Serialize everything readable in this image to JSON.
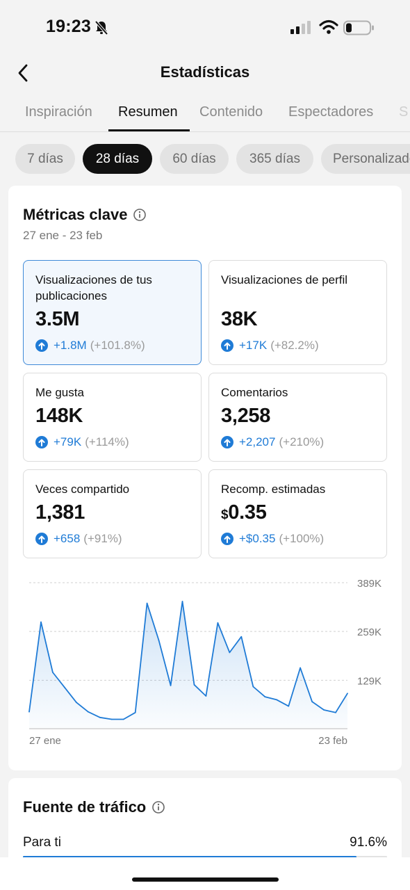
{
  "status_bar": {
    "time": "19:23"
  },
  "header": {
    "title": "Estadísticas"
  },
  "tabs": [
    {
      "label": "Inspiración"
    },
    {
      "label": "Resumen"
    },
    {
      "label": "Contenido"
    },
    {
      "label": "Espectadores"
    },
    {
      "label": "S"
    }
  ],
  "active_tab": "Resumen",
  "periods": [
    {
      "label": "7 días"
    },
    {
      "label": "28 días"
    },
    {
      "label": "60 días"
    },
    {
      "label": "365 días"
    },
    {
      "label": "Personalizado"
    }
  ],
  "active_period": "28 días",
  "metrics": {
    "title": "Métricas clave",
    "range": "27 ene - 23 feb",
    "tiles": [
      {
        "label": "Visualizaciones de tus publicaciones",
        "value": "3.5M",
        "delta": "+1.8M",
        "pct": "(+101.8%)"
      },
      {
        "label": "Visualizaciones de perfil",
        "value": "38K",
        "delta": "+17K",
        "pct": "(+82.2%)"
      },
      {
        "label": "Me gusta",
        "value": "148K",
        "delta": "+79K",
        "pct": "(+114%)"
      },
      {
        "label": "Comentarios",
        "value": "3,258",
        "delta": "+2,207",
        "pct": "(+210%)"
      },
      {
        "label": "Veces compartido",
        "value": "1,381",
        "delta": "+658",
        "pct": "(+91%)"
      },
      {
        "label": "Recomp. estimadas",
        "currency": "$",
        "value": "0.35",
        "delta": "+$0.35",
        "pct": "(+100%)"
      }
    ],
    "selected_tile": 0
  },
  "chart_data": {
    "type": "area",
    "x": [
      "27 ene",
      "28 ene",
      "29 ene",
      "30 ene",
      "31 ene",
      "1 feb",
      "2 feb",
      "3 feb",
      "4 feb",
      "5 feb",
      "6 feb",
      "7 feb",
      "8 feb",
      "9 feb",
      "10 feb",
      "11 feb",
      "12 feb",
      "13 feb",
      "14 feb",
      "15 feb",
      "16 feb",
      "17 feb",
      "18 feb",
      "19 feb",
      "20 feb",
      "21 feb",
      "22 feb",
      "23 feb"
    ],
    "series": [
      {
        "values": [
          45,
          284,
          150,
          110,
          70,
          45,
          30,
          25,
          25,
          43,
          334,
          235,
          115,
          339,
          117,
          87,
          282,
          203,
          245,
          112,
          85,
          77,
          60,
          162,
          72,
          50,
          43,
          94
        ]
      }
    ],
    "x_tick_labels": [
      "27 ene",
      "23 feb"
    ],
    "y_tick_labels": [
      "129K",
      "259K",
      "389K"
    ],
    "y_ticks": [
      129,
      259,
      389
    ],
    "ylim": [
      0,
      389
    ],
    "grid": true,
    "color": "#1f7bd6"
  },
  "traffic": {
    "title": "Fuente de tráfico",
    "rows": [
      {
        "label": "Para ti",
        "value": "91.6%",
        "fraction": 0.916
      }
    ]
  }
}
